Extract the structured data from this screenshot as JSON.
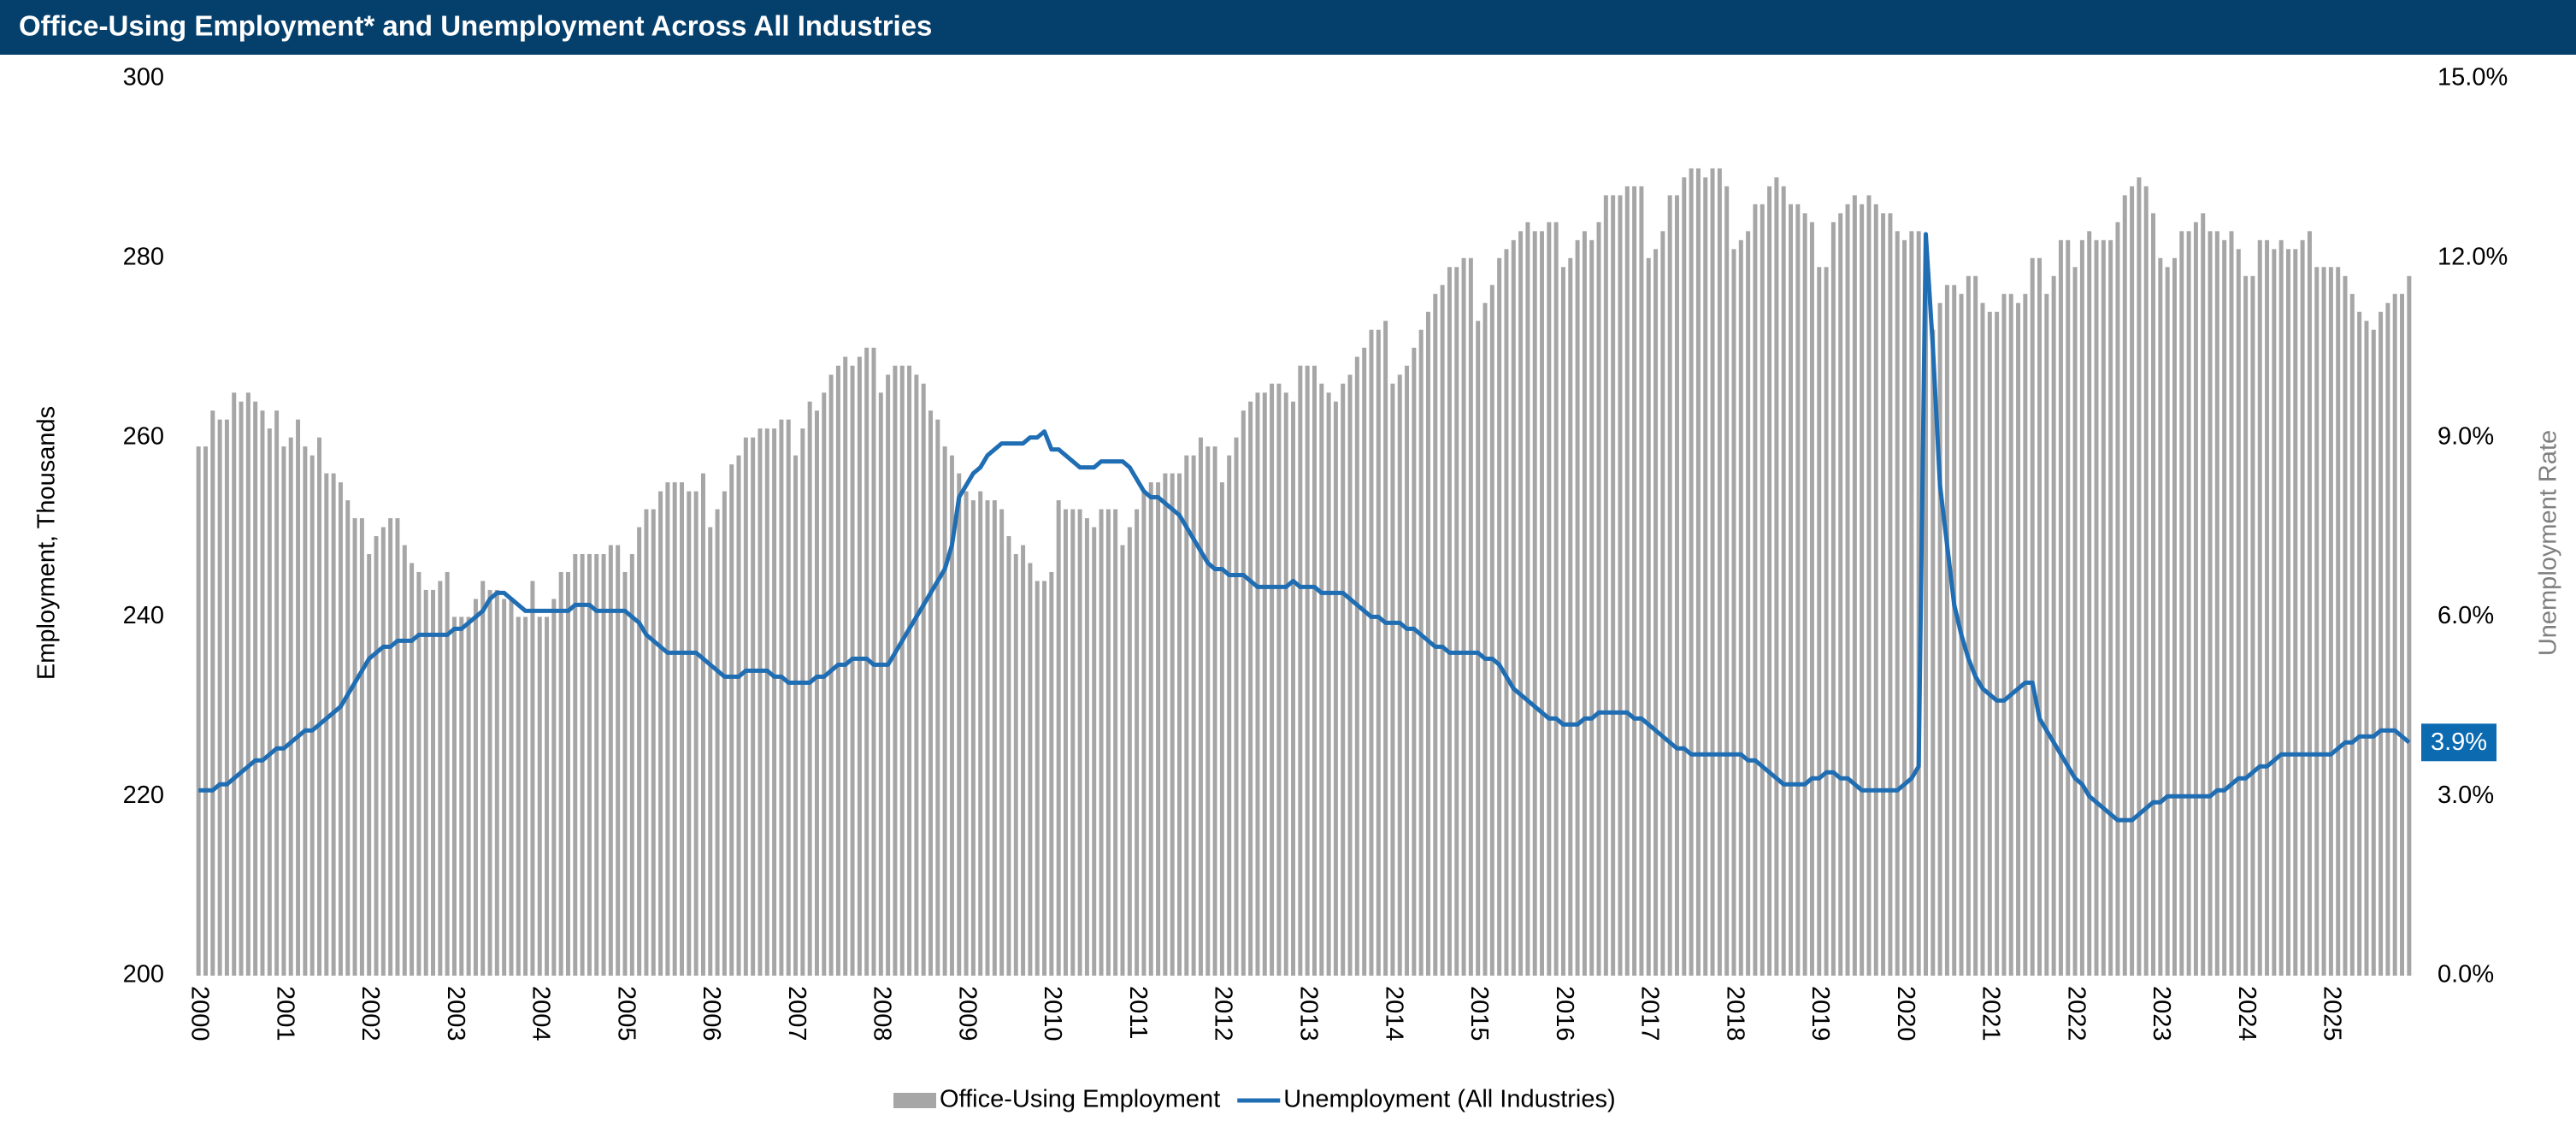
{
  "chart_data": {
    "type": "combo",
    "title": "Office-Using Employment* and Unemployment Across All Industries",
    "ylabel": "Employment, Thousands",
    "y2label": "Unemployment Rate",
    "end_label": "3.9%",
    "categories": [
      "2000",
      null,
      null,
      null,
      null,
      null,
      null,
      null,
      null,
      null,
      null,
      null,
      "2001",
      null,
      null,
      null,
      null,
      null,
      null,
      null,
      null,
      null,
      null,
      null,
      "2002",
      null,
      null,
      null,
      null,
      null,
      null,
      null,
      null,
      null,
      null,
      null,
      "2003",
      null,
      null,
      null,
      null,
      null,
      null,
      null,
      null,
      null,
      null,
      null,
      "2004",
      null,
      null,
      null,
      null,
      null,
      null,
      null,
      null,
      null,
      null,
      null,
      "2005",
      null,
      null,
      null,
      null,
      null,
      null,
      null,
      null,
      null,
      null,
      null,
      "2006",
      null,
      null,
      null,
      null,
      null,
      null,
      null,
      null,
      null,
      null,
      null,
      "2007",
      null,
      null,
      null,
      null,
      null,
      null,
      null,
      null,
      null,
      null,
      null,
      "2008",
      null,
      null,
      null,
      null,
      null,
      null,
      null,
      null,
      null,
      null,
      null,
      "2009",
      null,
      null,
      null,
      null,
      null,
      null,
      null,
      null,
      null,
      null,
      null,
      "2010",
      null,
      null,
      null,
      null,
      null,
      null,
      null,
      null,
      null,
      null,
      null,
      "2011",
      null,
      null,
      null,
      null,
      null,
      null,
      null,
      null,
      null,
      null,
      null,
      "2012",
      null,
      null,
      null,
      null,
      null,
      null,
      null,
      null,
      null,
      null,
      null,
      "2013",
      null,
      null,
      null,
      null,
      null,
      null,
      null,
      null,
      null,
      null,
      null,
      "2014",
      null,
      null,
      null,
      null,
      null,
      null,
      null,
      null,
      null,
      null,
      null,
      "2015",
      null,
      null,
      null,
      null,
      null,
      null,
      null,
      null,
      null,
      null,
      null,
      "2016",
      null,
      null,
      null,
      null,
      null,
      null,
      null,
      null,
      null,
      null,
      null,
      "2017",
      null,
      null,
      null,
      null,
      null,
      null,
      null,
      null,
      null,
      null,
      null,
      "2018",
      null,
      null,
      null,
      null,
      null,
      null,
      null,
      null,
      null,
      null,
      null,
      "2019",
      null,
      null,
      null,
      null,
      null,
      null,
      null,
      null,
      null,
      null,
      null,
      "2020",
      null,
      null,
      null,
      null,
      null,
      null,
      null,
      null,
      null,
      null,
      null,
      "2021",
      null,
      null,
      null,
      null,
      null,
      null,
      null,
      null,
      null,
      null,
      null,
      "2022",
      null,
      null,
      null,
      null,
      null,
      null,
      null,
      null,
      null,
      null,
      null,
      "2023",
      null,
      null,
      null,
      null,
      null,
      null,
      null,
      null,
      null,
      null,
      null,
      "2024",
      null,
      null,
      null,
      null,
      null,
      null,
      null,
      null,
      null,
      null,
      null,
      "2025",
      null,
      null,
      null,
      null,
      null,
      null,
      null,
      null,
      null,
      null,
      null
    ],
    "series": [
      {
        "name": "Office-Using Employment",
        "type": "bar",
        "color": "#a6a6a6",
        "values": [
          259,
          259,
          263,
          262,
          262,
          265,
          264,
          265,
          264,
          263,
          261,
          263,
          259,
          260,
          262,
          259,
          258,
          260,
          256,
          256,
          255,
          253,
          251,
          251,
          247,
          249,
          250,
          251,
          251,
          248,
          246,
          245,
          243,
          243,
          244,
          245,
          240,
          240,
          240,
          242,
          244,
          243,
          243,
          242,
          242,
          240,
          240,
          244,
          240,
          240,
          242,
          245,
          245,
          247,
          247,
          247,
          247,
          247,
          248,
          248,
          245,
          247,
          250,
          252,
          252,
          254,
          255,
          255,
          255,
          254,
          254,
          256,
          250,
          252,
          254,
          257,
          258,
          260,
          260,
          261,
          261,
          261,
          262,
          262,
          258,
          261,
          264,
          263,
          265,
          267,
          268,
          269,
          268,
          269,
          270,
          270,
          265,
          267,
          268,
          268,
          268,
          267,
          266,
          263,
          262,
          259,
          258,
          256,
          254,
          253,
          254,
          253,
          253,
          252,
          249,
          247,
          248,
          246,
          244,
          244,
          245,
          253,
          252,
          252,
          252,
          251,
          250,
          252,
          252,
          252,
          248,
          250,
          252,
          254,
          255,
          255,
          256,
          256,
          256,
          258,
          258,
          260,
          259,
          259,
          255,
          258,
          260,
          263,
          264,
          265,
          265,
          266,
          266,
          265,
          264,
          268,
          268,
          268,
          266,
          265,
          264,
          266,
          267,
          269,
          270,
          272,
          272,
          273,
          266,
          267,
          268,
          270,
          272,
          274,
          276,
          277,
          279,
          279,
          280,
          280,
          273,
          275,
          277,
          280,
          281,
          282,
          283,
          284,
          283,
          283,
          284,
          284,
          279,
          280,
          282,
          283,
          282,
          284,
          287,
          287,
          287,
          288,
          288,
          288,
          280,
          281,
          283,
          287,
          287,
          289,
          290,
          290,
          289,
          290,
          290,
          288,
          281,
          282,
          283,
          286,
          286,
          288,
          289,
          288,
          286,
          286,
          285,
          284,
          279,
          279,
          284,
          285,
          286,
          287,
          286,
          287,
          286,
          285,
          285,
          283,
          282,
          283,
          283,
          280,
          272,
          275,
          277,
          277,
          276,
          278,
          278,
          275,
          274,
          274,
          276,
          276,
          275,
          276,
          280,
          280,
          276,
          278,
          282,
          282,
          279,
          282,
          283,
          282,
          282,
          282,
          284,
          287,
          288,
          289,
          288,
          285,
          280,
          279,
          280,
          283,
          283,
          284,
          285,
          283,
          283,
          282,
          283,
          281,
          278,
          278,
          282,
          282,
          281,
          282,
          281,
          281,
          282,
          283,
          279,
          279,
          279,
          279,
          278,
          276,
          274,
          273,
          272,
          274,
          275,
          276,
          276,
          278
        ]
      },
      {
        "name": "Unemployment (All Industries)",
        "type": "line",
        "axis": "y2",
        "color": "#1f6db3",
        "values": [
          3.1,
          3.1,
          3.1,
          3.2,
          3.2,
          3.3,
          3.4,
          3.5,
          3.6,
          3.6,
          3.7,
          3.8,
          3.8,
          3.9,
          4.0,
          4.1,
          4.1,
          4.2,
          4.3,
          4.4,
          4.5,
          4.7,
          4.9,
          5.1,
          5.3,
          5.4,
          5.5,
          5.5,
          5.6,
          5.6,
          5.6,
          5.7,
          5.7,
          5.7,
          5.7,
          5.7,
          5.8,
          5.8,
          5.9,
          6.0,
          6.1,
          6.3,
          6.4,
          6.4,
          6.3,
          6.2,
          6.1,
          6.1,
          6.1,
          6.1,
          6.1,
          6.1,
          6.1,
          6.2,
          6.2,
          6.2,
          6.1,
          6.1,
          6.1,
          6.1,
          6.1,
          6.0,
          5.9,
          5.7,
          5.6,
          5.5,
          5.4,
          5.4,
          5.4,
          5.4,
          5.4,
          5.3,
          5.2,
          5.1,
          5.0,
          5.0,
          5.0,
          5.1,
          5.1,
          5.1,
          5.1,
          5.0,
          5.0,
          4.9,
          4.9,
          4.9,
          4.9,
          5.0,
          5.0,
          5.1,
          5.2,
          5.2,
          5.3,
          5.3,
          5.3,
          5.2,
          5.2,
          5.2,
          5.4,
          5.6,
          5.8,
          6.0,
          6.2,
          6.4,
          6.6,
          6.8,
          7.2,
          8.0,
          8.2,
          8.4,
          8.5,
          8.7,
          8.8,
          8.9,
          8.9,
          8.9,
          8.9,
          9.0,
          9.0,
          9.1,
          8.8,
          8.8,
          8.7,
          8.6,
          8.5,
          8.5,
          8.5,
          8.6,
          8.6,
          8.6,
          8.6,
          8.5,
          8.3,
          8.1,
          8.0,
          8.0,
          7.9,
          7.8,
          7.7,
          7.5,
          7.3,
          7.1,
          6.9,
          6.8,
          6.8,
          6.7,
          6.7,
          6.7,
          6.6,
          6.5,
          6.5,
          6.5,
          6.5,
          6.5,
          6.6,
          6.5,
          6.5,
          6.5,
          6.4,
          6.4,
          6.4,
          6.4,
          6.3,
          6.2,
          6.1,
          6.0,
          6.0,
          5.9,
          5.9,
          5.9,
          5.8,
          5.8,
          5.7,
          5.6,
          5.5,
          5.5,
          5.4,
          5.4,
          5.4,
          5.4,
          5.4,
          5.3,
          5.3,
          5.2,
          5.0,
          4.8,
          4.7,
          4.6,
          4.5,
          4.4,
          4.3,
          4.3,
          4.2,
          4.2,
          4.2,
          4.3,
          4.3,
          4.4,
          4.4,
          4.4,
          4.4,
          4.4,
          4.3,
          4.3,
          4.2,
          4.1,
          4.0,
          3.9,
          3.8,
          3.8,
          3.7,
          3.7,
          3.7,
          3.7,
          3.7,
          3.7,
          3.7,
          3.7,
          3.6,
          3.6,
          3.5,
          3.4,
          3.3,
          3.2,
          3.2,
          3.2,
          3.2,
          3.3,
          3.3,
          3.4,
          3.4,
          3.3,
          3.3,
          3.2,
          3.1,
          3.1,
          3.1,
          3.1,
          3.1,
          3.1,
          3.2,
          3.3,
          3.5,
          12.4,
          10.5,
          8.2,
          7.2,
          6.2,
          5.7,
          5.3,
          5.0,
          4.8,
          4.7,
          4.6,
          4.6,
          4.7,
          4.8,
          4.9,
          4.9,
          4.3,
          4.1,
          3.9,
          3.7,
          3.5,
          3.3,
          3.2,
          3.0,
          2.9,
          2.8,
          2.7,
          2.6,
          2.6,
          2.6,
          2.7,
          2.8,
          2.9,
          2.9,
          3.0,
          3.0,
          3.0,
          3.0,
          3.0,
          3.0,
          3.0,
          3.1,
          3.1,
          3.2,
          3.3,
          3.3,
          3.4,
          3.5,
          3.5,
          3.6,
          3.7,
          3.7,
          3.7,
          3.7,
          3.7,
          3.7,
          3.7,
          3.7,
          3.8,
          3.9,
          3.9,
          4.0,
          4.0,
          4.0,
          4.1,
          4.1,
          4.1,
          4.0,
          3.9
        ]
      }
    ],
    "ylim": [
      200,
      300
    ],
    "yticks": [
      200,
      220,
      240,
      260,
      280,
      300
    ],
    "y2lim": [
      0,
      15
    ],
    "y2ticks": [
      {
        "value": 0,
        "label": "0.0%"
      },
      {
        "value": 3,
        "label": "3.0%"
      },
      {
        "value": 6,
        "label": "6.0%"
      },
      {
        "value": 9,
        "label": "9.0%"
      },
      {
        "value": 12,
        "label": "12.0%"
      },
      {
        "value": 15,
        "label": "15.0%"
      }
    ],
    "legend": "bottom"
  }
}
